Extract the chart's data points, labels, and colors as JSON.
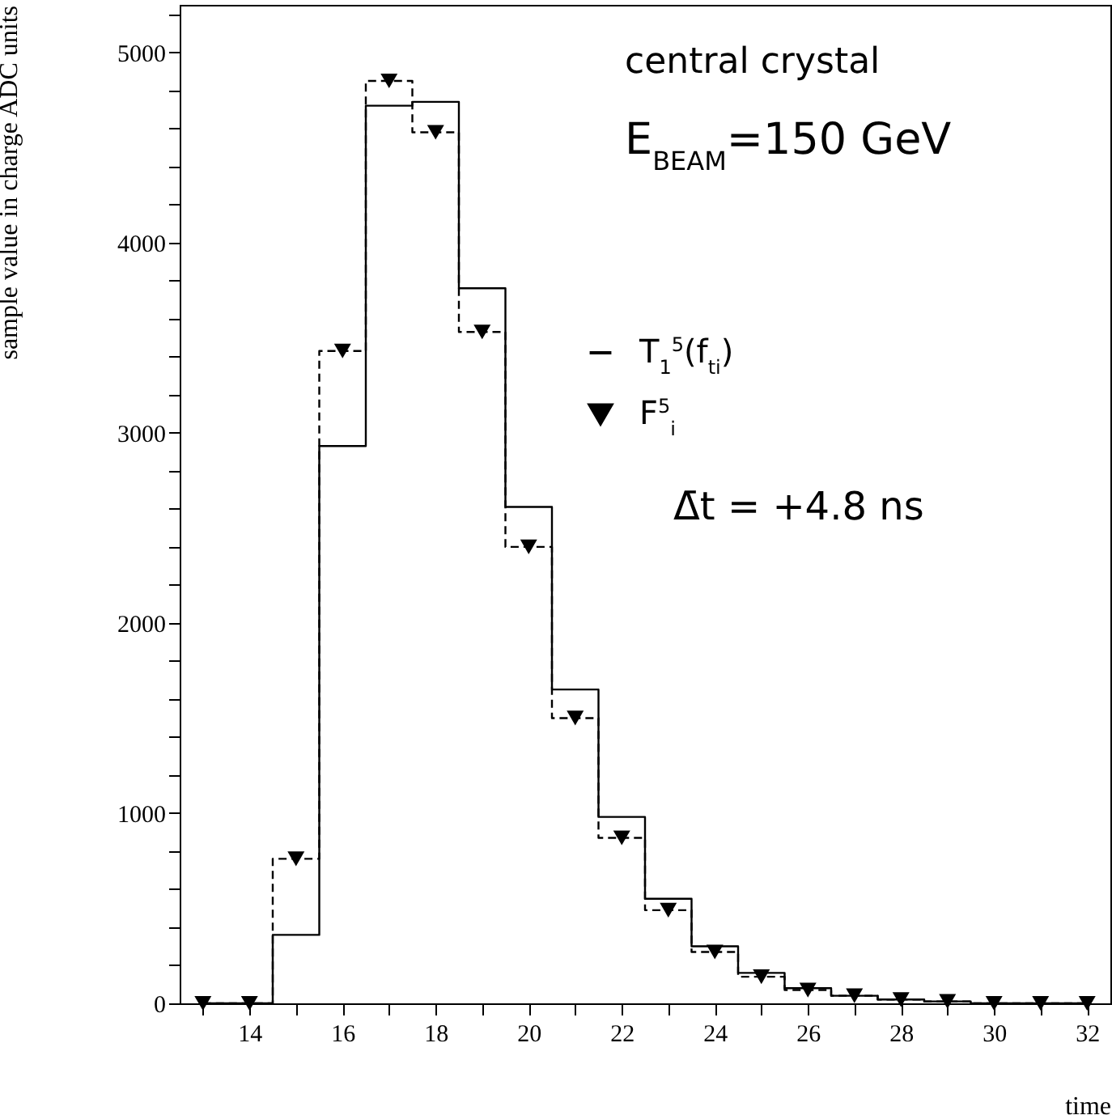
{
  "chart_data": {
    "type": "step",
    "xlabel": "time",
    "ylabel": "sample value in charge ADC units",
    "x": [
      13,
      14,
      15,
      16,
      17,
      18,
      19,
      20,
      21,
      22,
      23,
      24,
      25,
      26,
      27,
      28,
      29,
      30,
      31,
      32
    ],
    "series": [
      {
        "name": "T$_{1}$$^{5}$(f$_{ti}$)",
        "color": "#000000",
        "line_style": "solid",
        "marker": "none",
        "values": [
          0,
          0,
          360,
          2930,
          4720,
          4740,
          3760,
          2610,
          1650,
          980,
          550,
          300,
          160,
          80,
          40,
          20,
          10,
          0,
          0,
          0
        ]
      },
      {
        "name": "F$^{5}$$_{i}$",
        "color": "#000000",
        "line_style": "dashed",
        "marker": "triangle",
        "values": [
          0,
          0,
          760,
          3430,
          4850,
          4580,
          3530,
          2400,
          1500,
          870,
          490,
          270,
          140,
          70,
          40,
          20,
          10,
          0,
          0,
          0
        ]
      }
    ],
    "xlim": [
      12.5,
      32.5
    ],
    "xticks": [
      {
        "value": 13,
        "label": null
      },
      14,
      {
        "value": 15,
        "label": null
      },
      16,
      {
        "value": 17,
        "label": null
      },
      18,
      {
        "value": 19,
        "label": null
      },
      20,
      {
        "value": 21,
        "label": null
      },
      22,
      {
        "value": 23,
        "label": null
      },
      24,
      {
        "value": 25,
        "label": null
      },
      26,
      {
        "value": 27,
        "label": null
      },
      28,
      {
        "value": 29,
        "label": null
      },
      30,
      {
        "value": 31,
        "label": null
      },
      32
    ],
    "ylim": [
      0,
      5250
    ],
    "yticks": [
      0,
      {
        "value": 200,
        "label": null
      },
      {
        "value": 400,
        "label": null
      },
      {
        "value": 600,
        "label": null
      },
      {
        "value": 800,
        "label": null
      },
      1000,
      {
        "value": 1200,
        "label": null
      },
      {
        "value": 1400,
        "label": null
      },
      {
        "value": 1600,
        "label": null
      },
      {
        "value": 1800,
        "label": null
      },
      2000,
      {
        "value": 2200,
        "label": null
      },
      {
        "value": 2400,
        "label": null
      },
      {
        "value": 2600,
        "label": null
      },
      {
        "value": 2800,
        "label": null
      },
      3000,
      {
        "value": 3200,
        "label": null
      },
      {
        "value": 3400,
        "label": null
      },
      {
        "value": 3600,
        "label": null
      },
      {
        "value": 3800,
        "label": null
      },
      4000,
      {
        "value": 4200,
        "label": null
      },
      {
        "value": 4400,
        "label": null
      },
      {
        "value": 4600,
        "label": null
      },
      {
        "value": 4800,
        "label": null
      },
      5000,
      {
        "value": 5200,
        "label": null
      }
    ],
    "grid": false,
    "legend": "right",
    "annotations": [
      "central crystal",
      "E$_{BEAM}$=150 GeV",
      "Δ̄t = +4.8 ns"
    ]
  }
}
